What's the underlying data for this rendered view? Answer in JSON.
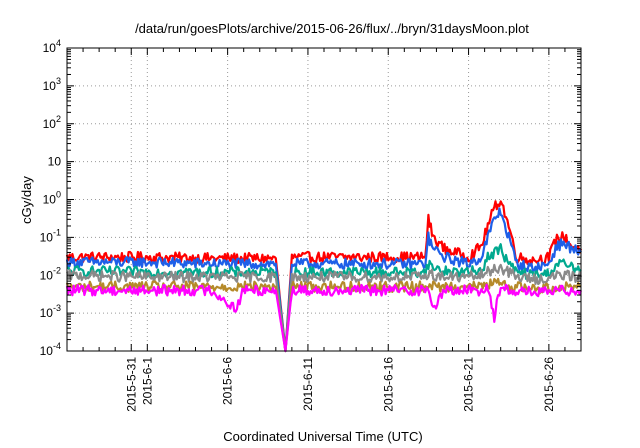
{
  "chart_data": {
    "type": "line",
    "title": "/data/run/goesPlots/archive/2015-06-26/flux/../bryn/31daysMoon.plot",
    "xlabel": "Coordinated Universal Time (UTC)",
    "ylabel": "cGy/day",
    "y_scale": "log",
    "ylim": [
      0.0001,
      10000
    ],
    "xlim": [
      "2015-05-27",
      "2015-06-28"
    ],
    "grid": true,
    "legend": "none",
    "y_ticks": [
      {
        "value": 0.0001,
        "base": "10",
        "exp": "-4"
      },
      {
        "value": 0.001,
        "base": "10",
        "exp": "-3"
      },
      {
        "value": 0.01,
        "base": "10",
        "exp": "-2"
      },
      {
        "value": 0.1,
        "base": "10",
        "exp": "-1"
      },
      {
        "value": 1,
        "base": "10",
        "exp": "0"
      },
      {
        "value": 10,
        "base": "10",
        "exp": ""
      },
      {
        "value": 100,
        "base": "10",
        "exp": "2"
      },
      {
        "value": 1000,
        "base": "10",
        "exp": "3"
      },
      {
        "value": 10000,
        "base": "10",
        "exp": "4"
      }
    ],
    "x_ticks": [
      {
        "value": "2015-05-31",
        "label": "2015-5-31"
      },
      {
        "value": "2015-06-01",
        "label": "2015-6-1"
      },
      {
        "value": "2015-06-06",
        "label": "2015-6-6"
      },
      {
        "value": "2015-06-11",
        "label": "2015-6-11"
      },
      {
        "value": "2015-06-16",
        "label": "2015-6-16"
      },
      {
        "value": "2015-06-21",
        "label": "2015-6-21"
      },
      {
        "value": "2015-06-26",
        "label": "2015-6-26"
      }
    ],
    "x_minor_ticks": [
      "2015-05-28",
      "2015-05-29",
      "2015-05-30",
      "2015-06-02",
      "2015-06-03",
      "2015-06-04",
      "2015-06-05",
      "2015-06-07",
      "2015-06-08",
      "2015-06-09",
      "2015-06-10",
      "2015-06-12",
      "2015-06-13",
      "2015-06-14",
      "2015-06-15",
      "2015-06-17",
      "2015-06-18",
      "2015-06-19",
      "2015-06-20",
      "2015-06-22",
      "2015-06-23",
      "2015-06-24",
      "2015-06-25",
      "2015-06-27"
    ],
    "series": [
      {
        "color": "#ff0000",
        "values": [
          [
            "2015-05-27",
            0.03
          ],
          [
            "2015-06-01",
            0.03
          ],
          [
            "2015-06-05",
            0.028
          ],
          [
            "2015-06-09",
            0.028
          ],
          [
            "2015-06-09.6",
            0.0001
          ],
          [
            "2015-06-10",
            0.03
          ],
          [
            "2015-06-14",
            0.03
          ],
          [
            "2015-06-17",
            0.03
          ],
          [
            "2015-06-18.3",
            0.03
          ],
          [
            "2015-06-18.5",
            0.3
          ],
          [
            "2015-06-18.8",
            0.1
          ],
          [
            "2015-06-19.5",
            0.05
          ],
          [
            "2015-06-21",
            0.03
          ],
          [
            "2015-06-21.8",
            0.06
          ],
          [
            "2015-06-22.2",
            0.2
          ],
          [
            "2015-06-22.6",
            0.6
          ],
          [
            "2015-06-23",
            1.0
          ],
          [
            "2015-06-23.5",
            0.2
          ],
          [
            "2015-06-24",
            0.03
          ],
          [
            "2015-06-25",
            0.025
          ],
          [
            "2015-06-26",
            0.03
          ],
          [
            "2015-06-26.5",
            0.1
          ],
          [
            "2015-06-27",
            0.1
          ],
          [
            "2015-06-27.4",
            0.06
          ],
          [
            "2015-06-28",
            0.05
          ]
        ]
      },
      {
        "color": "#1e5fe8",
        "values": [
          [
            "2015-05-27",
            0.022
          ],
          [
            "2015-06-01",
            0.022
          ],
          [
            "2015-06-05",
            0.02
          ],
          [
            "2015-06-09",
            0.02
          ],
          [
            "2015-06-09.6",
            0.0001
          ],
          [
            "2015-06-10",
            0.02
          ],
          [
            "2015-06-14",
            0.02
          ],
          [
            "2015-06-17",
            0.02
          ],
          [
            "2015-06-18.3",
            0.02
          ],
          [
            "2015-06-18.5",
            0.1
          ],
          [
            "2015-06-18.8",
            0.05
          ],
          [
            "2015-06-19.5",
            0.03
          ],
          [
            "2015-06-21",
            0.02
          ],
          [
            "2015-06-21.8",
            0.03
          ],
          [
            "2015-06-22.2",
            0.1
          ],
          [
            "2015-06-22.6",
            0.3
          ],
          [
            "2015-06-23",
            0.5
          ],
          [
            "2015-06-23.5",
            0.1
          ],
          [
            "2015-06-24",
            0.02
          ],
          [
            "2015-06-25",
            0.015
          ],
          [
            "2015-06-26",
            0.02
          ],
          [
            "2015-06-26.5",
            0.06
          ],
          [
            "2015-06-27",
            0.07
          ],
          [
            "2015-06-27.4",
            0.05
          ],
          [
            "2015-06-28",
            0.04
          ]
        ]
      },
      {
        "color": "#00a98f",
        "values": [
          [
            "2015-05-27",
            0.013
          ],
          [
            "2015-06-01",
            0.012
          ],
          [
            "2015-06-05",
            0.012
          ],
          [
            "2015-06-09",
            0.012
          ],
          [
            "2015-06-09.6",
            0.0001
          ],
          [
            "2015-06-10",
            0.012
          ],
          [
            "2015-06-14",
            0.012
          ],
          [
            "2015-06-17",
            0.012
          ],
          [
            "2015-06-18.3",
            0.012
          ],
          [
            "2015-06-18.5",
            0.02
          ],
          [
            "2015-06-18.8",
            0.016
          ],
          [
            "2015-06-19.5",
            0.013
          ],
          [
            "2015-06-21",
            0.012
          ],
          [
            "2015-06-21.8",
            0.014
          ],
          [
            "2015-06-22.2",
            0.03
          ],
          [
            "2015-06-22.6",
            0.04
          ],
          [
            "2015-06-23",
            0.05
          ],
          [
            "2015-06-23.5",
            0.02
          ],
          [
            "2015-06-24",
            0.012
          ],
          [
            "2015-06-25",
            0.01
          ],
          [
            "2015-06-26",
            0.011
          ],
          [
            "2015-06-26.5",
            0.02
          ],
          [
            "2015-06-27",
            0.02
          ],
          [
            "2015-06-27.4",
            0.016
          ],
          [
            "2015-06-28",
            0.014
          ]
        ]
      },
      {
        "color": "#8a8a8a",
        "values": [
          [
            "2015-05-27",
            0.01
          ],
          [
            "2015-06-01",
            0.009
          ],
          [
            "2015-06-05",
            0.009
          ],
          [
            "2015-06-09",
            0.009
          ],
          [
            "2015-06-09.6",
            0.0001
          ],
          [
            "2015-06-10",
            0.009
          ],
          [
            "2015-06-14",
            0.009
          ],
          [
            "2015-06-17",
            0.009
          ],
          [
            "2015-06-18.3",
            0.009
          ],
          [
            "2015-06-18.5",
            0.012
          ],
          [
            "2015-06-18.8",
            0.01
          ],
          [
            "2015-06-19.5",
            0.009
          ],
          [
            "2015-06-21",
            0.009
          ],
          [
            "2015-06-21.8",
            0.01
          ],
          [
            "2015-06-22.2",
            0.012
          ],
          [
            "2015-06-22.6",
            0.015
          ],
          [
            "2015-06-23",
            0.016
          ],
          [
            "2015-06-23.5",
            0.012
          ],
          [
            "2015-06-24",
            0.009
          ],
          [
            "2015-06-25",
            0.008
          ],
          [
            "2015-06-26",
            0.008
          ],
          [
            "2015-06-26.5",
            0.01
          ],
          [
            "2015-06-27",
            0.01
          ],
          [
            "2015-06-27.4",
            0.009
          ],
          [
            "2015-06-28",
            0.009
          ]
        ]
      },
      {
        "color": "#b58a2a",
        "values": [
          [
            "2015-05-27",
            0.005
          ],
          [
            "2015-06-01",
            0.005
          ],
          [
            "2015-06-05",
            0.005
          ],
          [
            "2015-06-09",
            0.005
          ],
          [
            "2015-06-09.6",
            0.0001
          ],
          [
            "2015-06-10",
            0.005
          ],
          [
            "2015-06-14",
            0.005
          ],
          [
            "2015-06-17",
            0.005
          ],
          [
            "2015-06-18.3",
            0.005
          ],
          [
            "2015-06-18.5",
            0.006
          ],
          [
            "2015-06-18.8",
            0.005
          ],
          [
            "2015-06-19.5",
            0.005
          ],
          [
            "2015-06-21",
            0.005
          ],
          [
            "2015-06-21.8",
            0.005
          ],
          [
            "2015-06-22.2",
            0.006
          ],
          [
            "2015-06-22.6",
            0.006
          ],
          [
            "2015-06-23",
            0.006
          ],
          [
            "2015-06-23.5",
            0.005
          ],
          [
            "2015-06-24",
            0.005
          ],
          [
            "2015-06-25",
            0.0045
          ],
          [
            "2015-06-26",
            0.0045
          ],
          [
            "2015-06-26.5",
            0.005
          ],
          [
            "2015-06-27",
            0.005
          ],
          [
            "2015-06-27.4",
            0.005
          ],
          [
            "2015-06-28",
            0.005
          ]
        ]
      },
      {
        "color": "#ff00ff",
        "values": [
          [
            "2015-05-27",
            0.004
          ],
          [
            "2015-06-01",
            0.004
          ],
          [
            "2015-06-05",
            0.004
          ],
          [
            "2015-06-06.5",
            0.0013
          ],
          [
            "2015-06-07",
            0.004
          ],
          [
            "2015-06-09",
            0.004
          ],
          [
            "2015-06-09.6",
            0.0001
          ],
          [
            "2015-06-10",
            0.004
          ],
          [
            "2015-06-14",
            0.004
          ],
          [
            "2015-06-17",
            0.004
          ],
          [
            "2015-06-18.3",
            0.004
          ],
          [
            "2015-06-18.5",
            0.005
          ],
          [
            "2015-06-18.8",
            0.0012
          ],
          [
            "2015-06-19.5",
            0.004
          ],
          [
            "2015-06-21",
            0.004
          ],
          [
            "2015-06-21.8",
            0.004
          ],
          [
            "2015-06-22.2",
            0.005
          ],
          [
            "2015-06-22.6",
            0.0008
          ],
          [
            "2015-06-23",
            0.005
          ],
          [
            "2015-06-23.5",
            0.004
          ],
          [
            "2015-06-24",
            0.004
          ],
          [
            "2015-06-25",
            0.0035
          ],
          [
            "2015-06-26",
            0.0035
          ],
          [
            "2015-06-26.5",
            0.004
          ],
          [
            "2015-06-27",
            0.004
          ],
          [
            "2015-06-27.4",
            0.004
          ],
          [
            "2015-06-28",
            0.004
          ]
        ]
      }
    ]
  }
}
